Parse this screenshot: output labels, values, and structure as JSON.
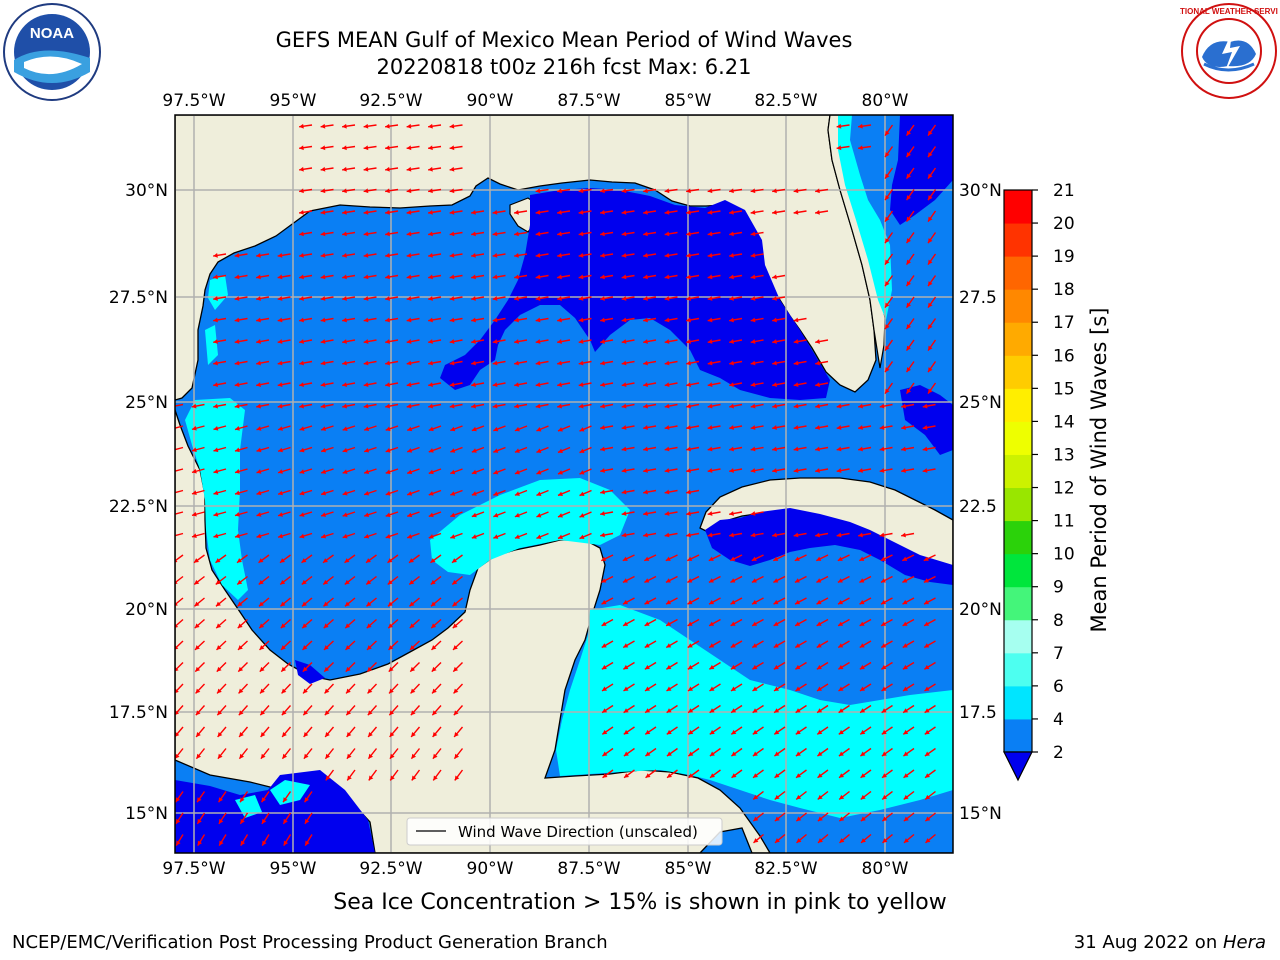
{
  "header": {
    "title_line1": "GEFS MEAN Gulf of Mexico Mean Period of Wind Waves",
    "title_line2": "20220818 t00z 216h fcst   Max: 6.21"
  },
  "map": {
    "lon_labels": [
      "97.5°W",
      "95°W",
      "92.5°W",
      "90°W",
      "87.5°W",
      "85°W",
      "82.5°W",
      "80°W"
    ],
    "lat_labels_left": [
      "30°N",
      "27.5°N",
      "25°N",
      "22.5°N",
      "20°N",
      "17.5°N",
      "15°N"
    ],
    "lat_labels_right": [
      "30°N",
      "27.5",
      "25°N",
      "22.5",
      "20°N",
      "17.5",
      "15°N"
    ],
    "legend_label": "Wind Wave Direction (unscaled)",
    "colors": {
      "land": "#efeedb",
      "water_2_4": "#0a7ff4",
      "water_0_2": "#0000ee",
      "water_4_6": "#00ffff",
      "arrow": "#ff0000"
    }
  },
  "colorbar": {
    "label": "Mean Period of Wind Waves [s]",
    "ticks": [
      "2",
      "4",
      "6",
      "7",
      "8",
      "9",
      "10",
      "11",
      "12",
      "13",
      "14",
      "15",
      "16",
      "17",
      "18",
      "19",
      "20",
      "21"
    ],
    "colors": [
      "#0a7ff4",
      "#00e5ff",
      "#4dfff0",
      "#a6fff0",
      "#44f57a",
      "#00e63c",
      "#2bd20a",
      "#99e600",
      "#ccf200",
      "#eeff00",
      "#ffee00",
      "#ffcc00",
      "#ffaa00",
      "#ff8800",
      "#ff6600",
      "#ff3300",
      "#ff0000"
    ],
    "extend_color": "#0000ee"
  },
  "footer": {
    "sea_ice_note": "Sea Ice Concentration > 15% is shown in pink to yellow",
    "left": "NCEP/EMC/Verification Post Processing Product Generation Branch",
    "right_date": "31 Aug 2022 on ",
    "right_host": "Hera"
  },
  "logos": {
    "noaa": "NOAA",
    "nws": "NATIONAL WEATHER SERVICE"
  }
}
